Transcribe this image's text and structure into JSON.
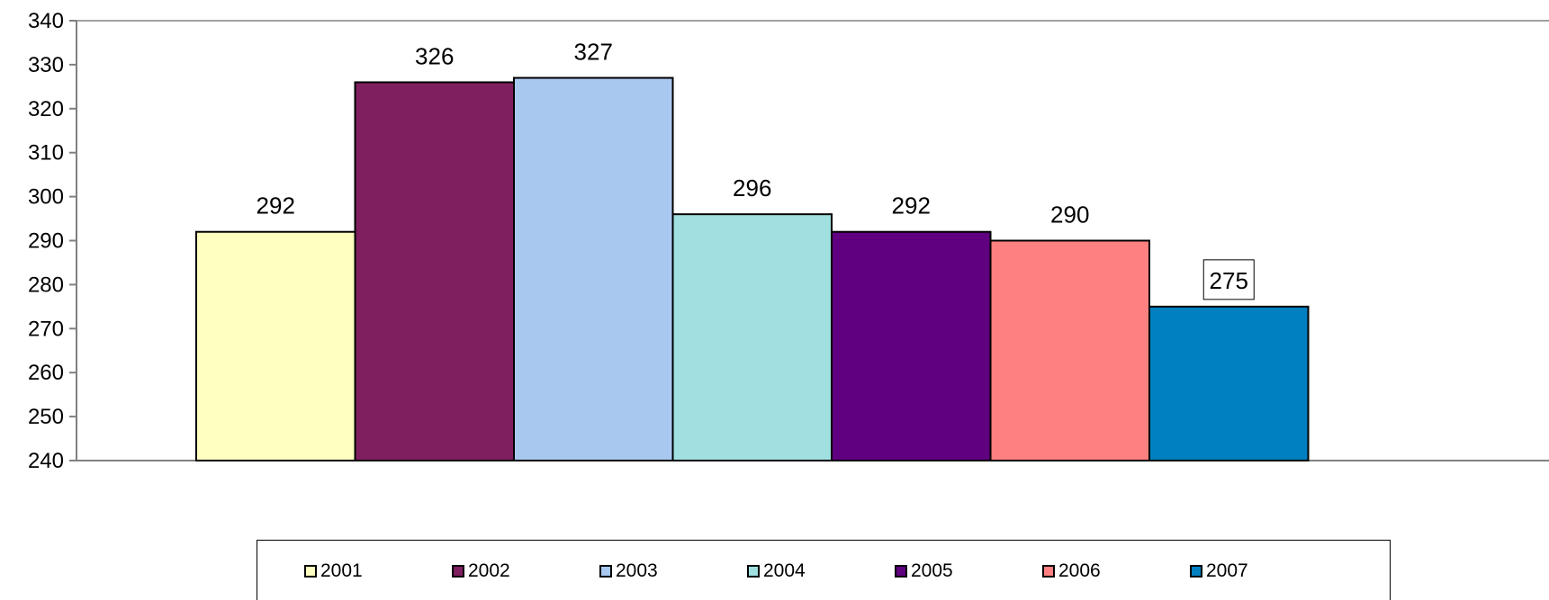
{
  "chart_data": {
    "type": "bar",
    "categories": [
      "2001",
      "2002",
      "2003",
      "2004",
      "2005",
      "2006",
      "2007"
    ],
    "values": [
      292,
      326,
      327,
      296,
      292,
      290,
      275
    ],
    "colors": [
      "#FFFFC0",
      "#7F1F5F",
      "#A8C8F0",
      "#A0E0E0",
      "#600080",
      "#FF8080",
      "#0080C0"
    ],
    "ylim": [
      240,
      340
    ],
    "yticks": [
      "240",
      "250",
      "260",
      "270",
      "280",
      "290",
      "300",
      "310",
      "320",
      "330",
      "340"
    ],
    "boxed_label_index": 6,
    "grid": false,
    "legend_position": "bottom",
    "title": "",
    "xlabel": "",
    "ylabel": ""
  }
}
